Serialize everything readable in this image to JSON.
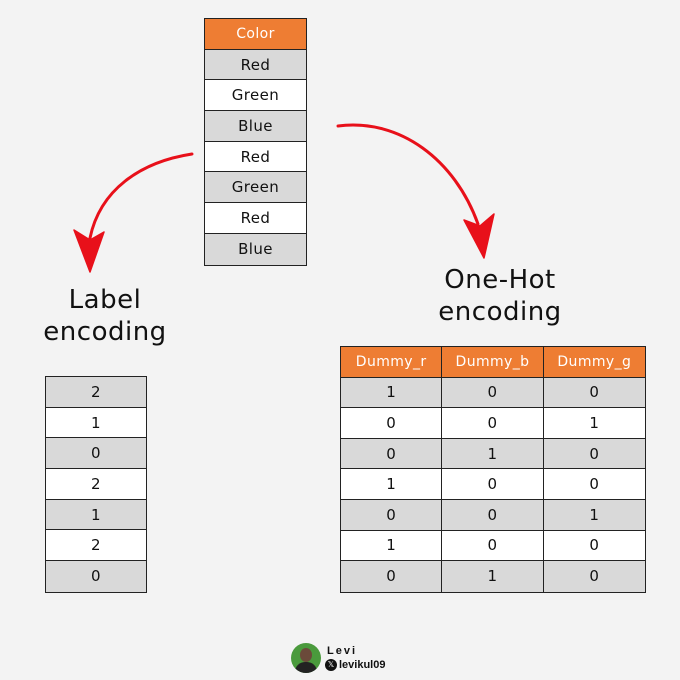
{
  "color_table": {
    "header": "Color",
    "rows": [
      "Red",
      "Green",
      "Blue",
      "Red",
      "Green",
      "Red",
      "Blue"
    ]
  },
  "label_encoding": {
    "title_line1": "Label",
    "title_line2": "encoding",
    "values": [
      "2",
      "1",
      "0",
      "2",
      "1",
      "2",
      "0"
    ]
  },
  "onehot_encoding": {
    "title_line1": "One-Hot",
    "title_line2": "encoding",
    "headers": [
      "Dummy_r",
      "Dummy_b",
      "Dummy_g"
    ],
    "rows": [
      [
        "1",
        "0",
        "0"
      ],
      [
        "0",
        "0",
        "1"
      ],
      [
        "0",
        "1",
        "0"
      ],
      [
        "1",
        "0",
        "0"
      ],
      [
        "0",
        "0",
        "1"
      ],
      [
        "1",
        "0",
        "0"
      ],
      [
        "0",
        "1",
        "0"
      ]
    ]
  },
  "footer": {
    "name": "Levi",
    "handle": "levikul09",
    "x_icon": "𝕏"
  },
  "colors": {
    "header_orange": "#ee7d33",
    "row_gray": "#d9d9d9",
    "arrow_red": "#e8101a",
    "background": "#f3f3f3"
  }
}
